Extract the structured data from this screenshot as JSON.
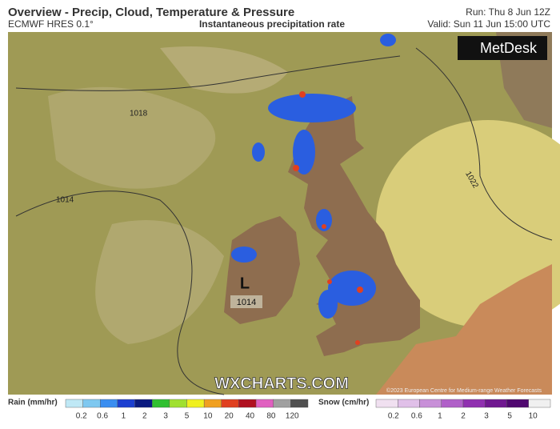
{
  "header": {
    "title": "Overview - Precip, Cloud, Temperature & Pressure",
    "model": "ECMWF HRES 0.1°",
    "subtitle": "Instantaneous precipitation rate",
    "run": "Run: Thu 8 Jun 12Z",
    "valid": "Valid: Sun 11 Jun 15:00 UTC"
  },
  "logo": "MetDesk",
  "map": {
    "isobars": [
      "1018",
      "1014",
      "1022"
    ],
    "low": {
      "symbol": "L",
      "pressure": "1014"
    },
    "watermark": "WXCHARTS.COM",
    "credit": "©2023 European Centre for Medium-range Weather Forecasts"
  },
  "legend": {
    "rain": {
      "label": "Rain (mm/hr)",
      "ticks": [
        0.2,
        0.6,
        1,
        2,
        3,
        5,
        10,
        20,
        40,
        80,
        120
      ]
    },
    "snow": {
      "label": "Snow (cm/hr)",
      "ticks": [
        0.2,
        0.6,
        1,
        2,
        3,
        5,
        10
      ]
    }
  }
}
